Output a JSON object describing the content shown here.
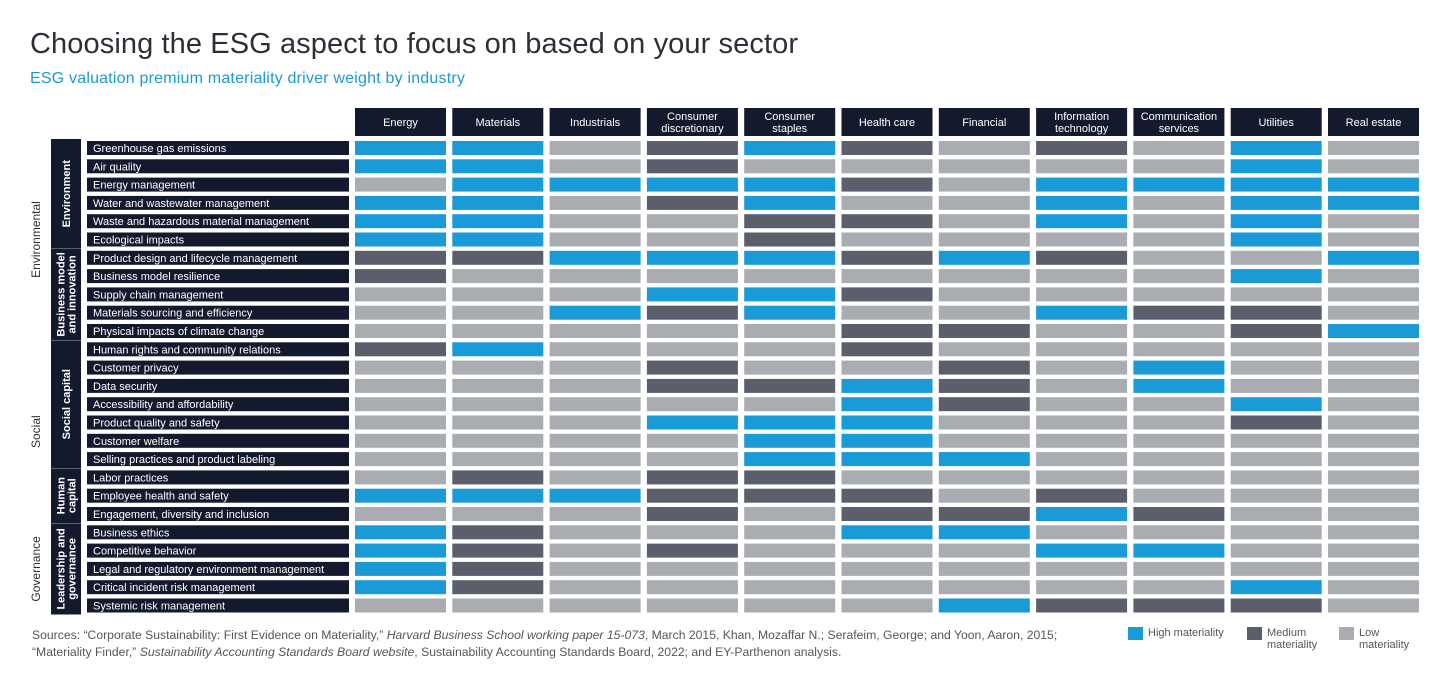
{
  "title": "Choosing the ESG aspect to focus on based on your sector",
  "subtitle": "ESG valuation premium materiality driver weight by industry",
  "colors": {
    "high": "#1a9ad6",
    "medium": "#5b5f6b",
    "low": "#a9acb0",
    "header_bg": "#141a2e",
    "text": "#2e2e38"
  },
  "chart_data": {
    "type": "heatmap",
    "columns": [
      "Energy",
      "Materials",
      "Industrials",
      "Consumer discretionary",
      "Consumer staples",
      "Health care",
      "Financial",
      "Information technology",
      "Communication services",
      "Utilities",
      "Real estate"
    ],
    "column_label_lines": [
      [
        "Energy"
      ],
      [
        "Materials"
      ],
      [
        "Industrials"
      ],
      [
        "Consumer",
        "discretionary"
      ],
      [
        "Consumer",
        "staples"
      ],
      [
        "Health care"
      ],
      [
        "Financial"
      ],
      [
        "Information",
        "technology"
      ],
      [
        "Communication",
        "services"
      ],
      [
        "Utilities"
      ],
      [
        "Real estate"
      ]
    ],
    "rows": [
      "Greenhouse gas emissions",
      "Air quality",
      "Energy management",
      "Water and wastewater management",
      "Waste and hazardous material management",
      "Ecological impacts",
      "Product design and lifecycle management",
      "Business model resilience",
      "Supply chain management",
      "Materials sourcing and efficiency",
      "Physical impacts of climate change",
      "Human rights and community relations",
      "Customer privacy",
      "Data security",
      "Accessibility and affordability",
      "Product quality and safety",
      "Customer welfare",
      "Selling practices and product labeling",
      "Labor practices",
      "Employee health and safety",
      "Engagement, diversity and inclusion",
      "Business ethics",
      "Competitive behavior",
      "Legal and regulatory environment management",
      "Critical incident risk management",
      "Systemic risk management"
    ],
    "value_key": {
      "H": "High materiality",
      "M": "Medium materiality",
      "L": "Low materiality"
    },
    "values": [
      [
        "H",
        "H",
        "L",
        "M",
        "H",
        "M",
        "L",
        "M",
        "L",
        "H",
        "L"
      ],
      [
        "H",
        "H",
        "L",
        "M",
        "L",
        "L",
        "L",
        "L",
        "L",
        "H",
        "L"
      ],
      [
        "L",
        "H",
        "H",
        "H",
        "H",
        "M",
        "L",
        "H",
        "H",
        "H",
        "H"
      ],
      [
        "H",
        "H",
        "L",
        "M",
        "H",
        "L",
        "L",
        "H",
        "L",
        "H",
        "H"
      ],
      [
        "H",
        "H",
        "L",
        "L",
        "M",
        "M",
        "L",
        "H",
        "L",
        "H",
        "L"
      ],
      [
        "H",
        "H",
        "L",
        "L",
        "M",
        "L",
        "L",
        "L",
        "L",
        "H",
        "L"
      ],
      [
        "M",
        "M",
        "H",
        "H",
        "H",
        "M",
        "H",
        "M",
        "L",
        "L",
        "H"
      ],
      [
        "M",
        "L",
        "L",
        "L",
        "L",
        "L",
        "L",
        "L",
        "L",
        "H",
        "L"
      ],
      [
        "L",
        "L",
        "L",
        "H",
        "H",
        "M",
        "L",
        "L",
        "L",
        "L",
        "L"
      ],
      [
        "L",
        "L",
        "H",
        "M",
        "H",
        "L",
        "L",
        "H",
        "M",
        "M",
        "L"
      ],
      [
        "L",
        "L",
        "L",
        "L",
        "L",
        "M",
        "M",
        "L",
        "L",
        "M",
        "H"
      ],
      [
        "M",
        "H",
        "L",
        "L",
        "L",
        "M",
        "L",
        "L",
        "L",
        "L",
        "L"
      ],
      [
        "L",
        "L",
        "L",
        "M",
        "L",
        "L",
        "M",
        "L",
        "H",
        "L",
        "L"
      ],
      [
        "L",
        "L",
        "L",
        "M",
        "M",
        "H",
        "M",
        "L",
        "H",
        "L",
        "L"
      ],
      [
        "L",
        "L",
        "L",
        "L",
        "L",
        "H",
        "M",
        "L",
        "L",
        "H",
        "L"
      ],
      [
        "L",
        "L",
        "L",
        "H",
        "H",
        "H",
        "L",
        "L",
        "L",
        "M",
        "L"
      ],
      [
        "L",
        "L",
        "L",
        "L",
        "H",
        "H",
        "L",
        "L",
        "L",
        "L",
        "L"
      ],
      [
        "L",
        "L",
        "L",
        "L",
        "H",
        "H",
        "H",
        "L",
        "L",
        "L",
        "L"
      ],
      [
        "L",
        "M",
        "L",
        "M",
        "M",
        "L",
        "L",
        "L",
        "L",
        "L",
        "L"
      ],
      [
        "H",
        "H",
        "H",
        "M",
        "M",
        "M",
        "L",
        "M",
        "L",
        "L",
        "L"
      ],
      [
        "L",
        "L",
        "L",
        "M",
        "L",
        "M",
        "M",
        "H",
        "M",
        "L",
        "L"
      ],
      [
        "H",
        "M",
        "L",
        "L",
        "L",
        "H",
        "H",
        "L",
        "L",
        "L",
        "L"
      ],
      [
        "H",
        "M",
        "L",
        "M",
        "L",
        "L",
        "L",
        "H",
        "H",
        "L",
        "L"
      ],
      [
        "H",
        "M",
        "L",
        "L",
        "L",
        "L",
        "L",
        "L",
        "L",
        "L",
        "L"
      ],
      [
        "H",
        "M",
        "L",
        "L",
        "L",
        "L",
        "L",
        "L",
        "L",
        "H",
        "L"
      ],
      [
        "L",
        "L",
        "L",
        "L",
        "L",
        "L",
        "H",
        "M",
        "M",
        "M",
        "L"
      ]
    ],
    "groups": [
      {
        "outer": "Environmental",
        "inner": [
          {
            "label_lines": [
              "Environment"
            ],
            "rows": [
              0,
              5
            ]
          },
          {
            "label_lines": [
              "Business model",
              "and innovation"
            ],
            "rows": [
              6,
              10
            ]
          }
        ]
      },
      {
        "outer": "Social",
        "inner": [
          {
            "label_lines": [
              "Social capital"
            ],
            "rows": [
              11,
              17
            ]
          },
          {
            "label_lines": [
              "Human",
              "capital"
            ],
            "rows": [
              18,
              20
            ]
          }
        ]
      },
      {
        "outer": "Governance",
        "inner": [
          {
            "label_lines": [
              "Leadership and",
              "governance"
            ],
            "rows": [
              21,
              25
            ]
          }
        ]
      }
    ]
  },
  "legend": {
    "high": "High materiality",
    "medium_lines": [
      "Medium",
      "materiality"
    ],
    "low_lines": [
      "Low",
      "materiality"
    ]
  },
  "sources": {
    "p1": "Sources: “Corporate Sustainability: First Evidence on Materiality,” ",
    "i1": "Harvard Business School working paper 15-073",
    "p2": ", March 2015, Khan, Mozaffar N.; Serafeim, George; and Yoon, Aaron, 2015; “Materiality Finder,” ",
    "i2": "Sustainability Accounting Standards Board website",
    "p3": ", Sustainability Accounting Standards Board, 2022; and EY-Parthenon analysis."
  }
}
